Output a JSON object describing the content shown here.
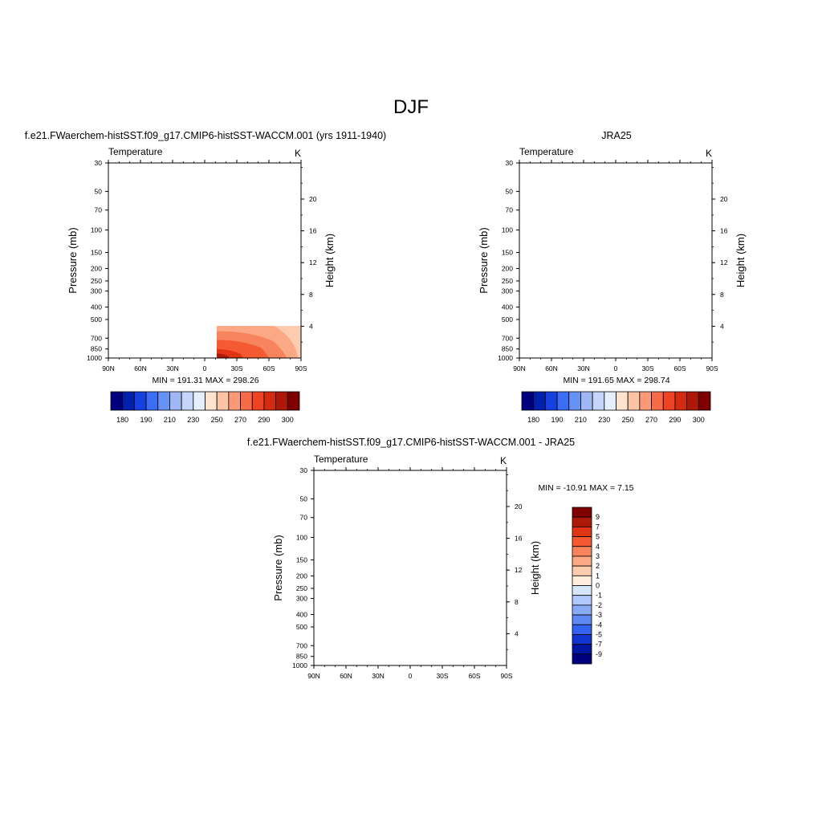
{
  "page": {
    "season": "DJF",
    "panel_titles": {
      "model": "f.e21.FWaerchem-histSST.f09_g17.CMIP6-histSST-WACCM.001 (yrs 1911-1940)",
      "obs": "JRA25",
      "diff": "f.e21.FWaerchem-histSST.f09_g17.CMIP6-histSST-WACCM.001 - JRA25"
    }
  },
  "chart_data": [
    {
      "type": "heatmap",
      "title": "f.e21.FWaerchem-histSST.f09_g17.CMIP6-histSST-WACCM.001 (yrs 1911-1940)",
      "variable": "Temperature",
      "units": "K",
      "xlabel": "",
      "ylabel": "Pressure (mb)",
      "y2label": "Height (km)",
      "x_ticks": [
        "90N",
        "60N",
        "30N",
        "0",
        "30S",
        "60S",
        "90S"
      ],
      "y_ticks": [
        30,
        50,
        70,
        100,
        150,
        200,
        250,
        300,
        400,
        500,
        700,
        850,
        1000
      ],
      "y2_ticks": [
        20,
        16,
        12,
        8,
        4
      ],
      "y_scale": "log",
      "ylim": [
        1000,
        30
      ],
      "stats": "MIN = 191.31  MAX = 298.26",
      "min": 191.31,
      "max": 298.26,
      "colorbar_labels": [
        "180",
        "190",
        "210",
        "230",
        "250",
        "270",
        "290",
        "300"
      ],
      "colorbar_colors": [
        "#00007e",
        "#0021ae",
        "#1641e0",
        "#3c6ef5",
        "#6592f4",
        "#9db8f5",
        "#c5d6fa",
        "#e4eefd",
        "#fee3d0",
        "#fcc3a6",
        "#fb9a78",
        "#f66c4a",
        "#ee4423",
        "#d42a10",
        "#ae1808",
        "#800000"
      ]
    },
    {
      "type": "heatmap",
      "title": "JRA25",
      "variable": "Temperature",
      "units": "K",
      "xlabel": "",
      "ylabel": "Pressure (mb)",
      "y2label": "Height (km)",
      "x_ticks": [
        "90N",
        "60N",
        "30N",
        "0",
        "30S",
        "60S",
        "90S"
      ],
      "y_ticks": [
        30,
        50,
        70,
        100,
        150,
        200,
        250,
        300,
        400,
        500,
        700,
        850,
        1000
      ],
      "y2_ticks": [
        20,
        16,
        12,
        8,
        4
      ],
      "y_scale": "log",
      "ylim": [
        1000,
        30
      ],
      "stats": "MIN = 191.65  MAX = 298.74",
      "min": 191.65,
      "max": 298.74,
      "colorbar_labels": [
        "180",
        "190",
        "210",
        "230",
        "250",
        "270",
        "290",
        "300"
      ],
      "colorbar_colors": [
        "#00007e",
        "#0021ae",
        "#1641e0",
        "#3c6ef5",
        "#6592f4",
        "#9db8f5",
        "#c5d6fa",
        "#e4eefd",
        "#fee3d0",
        "#fcc3a6",
        "#fb9a78",
        "#f66c4a",
        "#ee4423",
        "#d42a10",
        "#ae1808",
        "#800000"
      ]
    },
    {
      "type": "heatmap",
      "title": "f.e21.FWaerchem-histSST.f09_g17.CMIP6-histSST-WACCM.001 - JRA25",
      "variable": "Temperature",
      "units": "K",
      "xlabel": "",
      "ylabel": "Pressure (mb)",
      "y2label": "Height (km)",
      "x_ticks": [
        "90N",
        "60N",
        "30N",
        "0",
        "30S",
        "60S",
        "90S"
      ],
      "y_ticks": [
        30,
        50,
        70,
        100,
        150,
        200,
        250,
        300,
        400,
        500,
        700,
        850,
        1000
      ],
      "y2_ticks": [
        20,
        16,
        12,
        8,
        4
      ],
      "y_scale": "log",
      "ylim": [
        1000,
        30
      ],
      "stats": "MIN = -10.91  MAX =   7.15",
      "min": -10.91,
      "max": 7.15,
      "colorbar_labels": [
        "9",
        "7",
        "5",
        "4",
        "3",
        "2",
        "1",
        "0",
        "-1",
        "-2",
        "-3",
        "-4",
        "-5",
        "-7",
        "-9"
      ],
      "colorbar_colors": [
        "#800000",
        "#ae1808",
        "#e03414",
        "#f65a33",
        "#f8845d",
        "#fba884",
        "#fdccae",
        "#ffeedd",
        "#d6e6fd",
        "#b0c9fa",
        "#88aaf7",
        "#5f88f3",
        "#3262ef",
        "#1034d0",
        "#0016a0",
        "#00007e"
      ]
    }
  ]
}
